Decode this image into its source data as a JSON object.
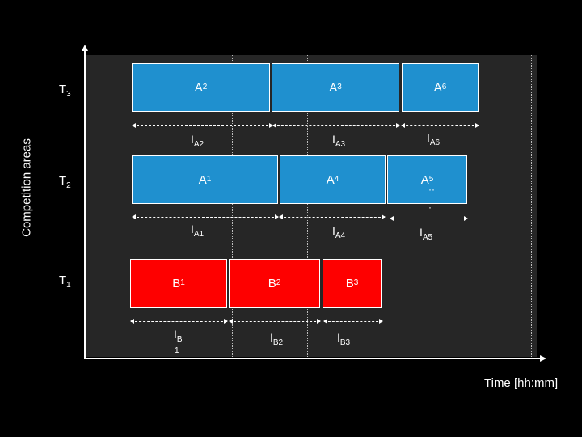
{
  "axes": {
    "y_title": "Competition areas",
    "x_title": "Time [hh:mm]"
  },
  "rows": {
    "t3": {
      "main": "T",
      "sub": "3"
    },
    "t2": {
      "main": "T",
      "sub": "2"
    },
    "t1": {
      "main": "T",
      "sub": "1"
    }
  },
  "blocks": {
    "a2": {
      "main": "A",
      "sub": "2"
    },
    "a3": {
      "main": "A",
      "sub": "3"
    },
    "a6": {
      "main": "A",
      "sub": "6"
    },
    "a1": {
      "main": "A",
      "sub": "1"
    },
    "a4": {
      "main": "A",
      "sub": "4"
    },
    "a5": {
      "main": "A",
      "sub": "5"
    },
    "b1": {
      "main": "B",
      "sub": "1"
    },
    "b2": {
      "main": "B",
      "sub": "2"
    },
    "b3": {
      "main": "B",
      "sub": "3"
    }
  },
  "intervals": {
    "ia2": {
      "main": "I",
      "sub": "A2"
    },
    "ia3": {
      "main": "I",
      "sub": "A3"
    },
    "ia6": {
      "main": "I",
      "sub": "A6"
    },
    "ia1": {
      "main": "I",
      "sub": "A1"
    },
    "ia4": {
      "main": "I",
      "sub": "A4"
    },
    "ia5": {
      "main": "I",
      "sub": "A5"
    },
    "ib1": {
      "main": "I",
      "sub": "B",
      "sub2": "1"
    },
    "ib2": {
      "main": "I",
      "sub": "B2"
    },
    "ib3": {
      "main": "I",
      "sub": "B3"
    }
  },
  "colors": {
    "a_blocks": "#1f90cf",
    "b_blocks": "#fe0000",
    "plot_background": "#262626",
    "page_background": "#000000"
  }
}
